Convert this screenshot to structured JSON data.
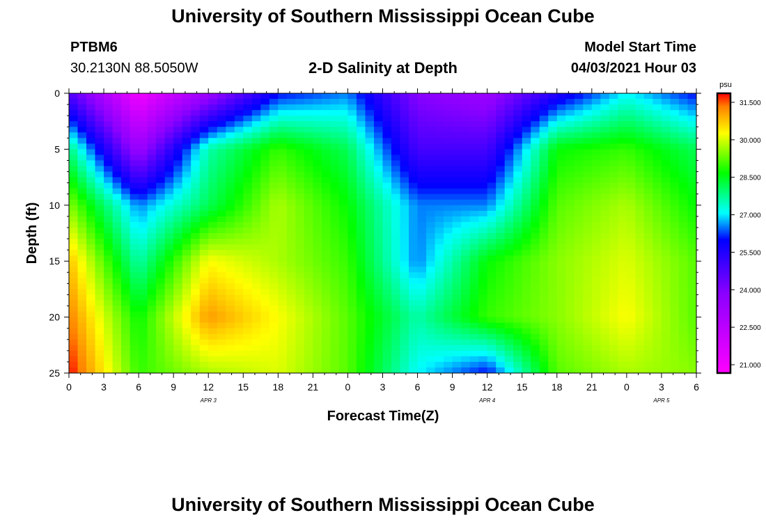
{
  "header": {
    "title": "University of Southern Mississippi Ocean Cube",
    "station": "PTBM6",
    "coords": "30.2130N  88.5050W",
    "plot_title": "2-D Salinity at Depth",
    "model_label": "Model Start Time",
    "model_time": "04/03/2021 Hour 03"
  },
  "footer": {
    "title": "University of Southern Mississippi Ocean Cube"
  },
  "chart_data": {
    "type": "heatmap",
    "title": "2-D Salinity at Depth",
    "xlabel": "Forecast Time(Z)",
    "ylabel": "Depth (ft)",
    "x_hours": [
      0,
      54
    ],
    "x_tick_labels": [
      "0",
      "3",
      "6",
      "9",
      "12",
      "15",
      "18",
      "21",
      "0",
      "3",
      "6",
      "9",
      "12",
      "15",
      "18",
      "21",
      "0",
      "3",
      "6"
    ],
    "date_labels": [
      {
        "label": "APR 3",
        "hour": 12
      },
      {
        "label": "APR 4",
        "hour": 36
      },
      {
        "label": "APR 5",
        "hour": 51
      }
    ],
    "y_tick_labels": [
      "0",
      "5",
      "10",
      "15",
      "20",
      "25"
    ],
    "ylim": [
      0,
      25
    ],
    "colorbar": {
      "unit": "psu",
      "min": 21.0,
      "max": 31.5,
      "tick_labels": [
        "31.500",
        "30.000",
        "28.500",
        "27.000",
        "25.500",
        "24.000",
        "22.500",
        "21.000"
      ],
      "stops": [
        {
          "v": 21.0,
          "color": "#ff00ff"
        },
        {
          "v": 24.0,
          "color": "#8a00ff"
        },
        {
          "v": 26.0,
          "color": "#0000ff"
        },
        {
          "v": 27.0,
          "color": "#00ffff"
        },
        {
          "v": 28.5,
          "color": "#00ff00"
        },
        {
          "v": 30.0,
          "color": "#ffff00"
        },
        {
          "v": 31.0,
          "color": "#ff8000"
        },
        {
          "v": 31.5,
          "color": "#ff0000"
        }
      ]
    },
    "depth_rows": [
      0,
      5,
      10,
      15,
      20,
      25
    ],
    "time_columns": [
      0,
      6,
      12,
      18,
      24,
      30,
      36,
      42,
      48,
      54
    ],
    "salinity_psu": [
      [
        24.8,
        21.3,
        23.5,
        26.0,
        26.5,
        24.0,
        23.5,
        25.5,
        27.0,
        26.0
      ],
      [
        27.8,
        23.5,
        27.5,
        28.8,
        28.0,
        25.0,
        25.0,
        28.5,
        28.8,
        28.0
      ],
      [
        29.3,
        26.5,
        28.0,
        29.5,
        28.5,
        26.5,
        26.5,
        29.0,
        29.5,
        28.5
      ],
      [
        30.5,
        27.5,
        30.0,
        29.5,
        28.8,
        26.5,
        28.5,
        29.3,
        29.8,
        29.0
      ],
      [
        31.0,
        28.5,
        30.8,
        30.0,
        29.0,
        27.5,
        28.8,
        29.3,
        30.0,
        29.0
      ],
      [
        31.5,
        28.8,
        29.5,
        29.8,
        29.0,
        27.0,
        26.0,
        29.0,
        29.5,
        29.3
      ]
    ]
  }
}
